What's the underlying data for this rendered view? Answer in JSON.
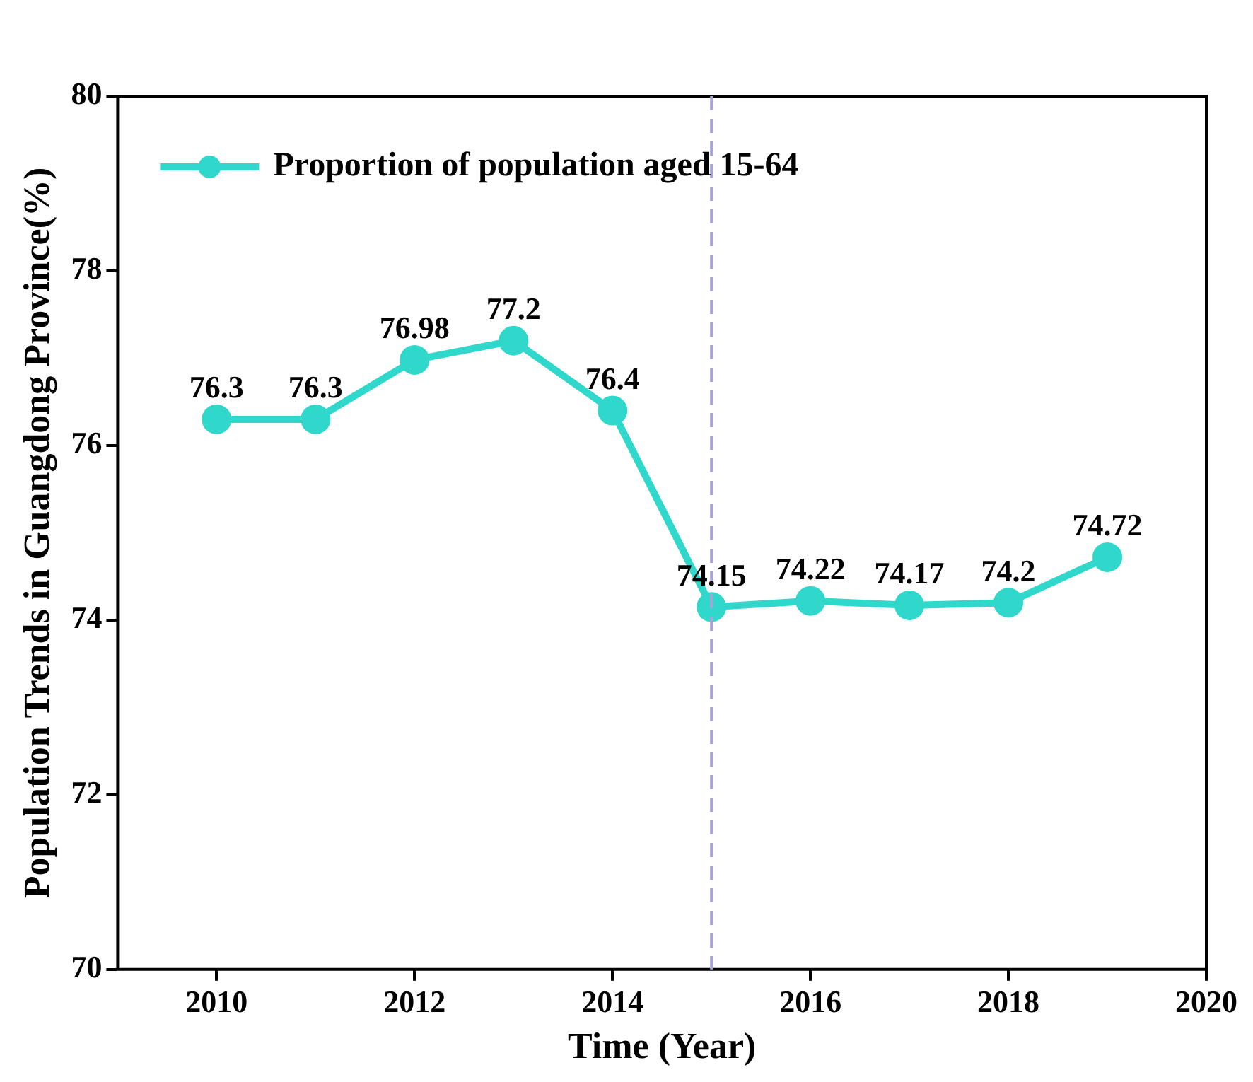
{
  "chart_data": {
    "type": "line",
    "xlabel": "Time (Year)",
    "ylabel": "Population Trends in Guangdong Province(%)",
    "x": [
      2010,
      2011,
      2012,
      2013,
      2014,
      2015,
      2016,
      2017,
      2018,
      2019
    ],
    "series": [
      {
        "name": "Proportion of population aged 15-64",
        "color": "#2fd8cb",
        "values": [
          76.3,
          76.3,
          76.98,
          77.2,
          76.4,
          74.15,
          74.22,
          74.17,
          74.2,
          74.72
        ]
      }
    ],
    "xlim": [
      2009,
      2020
    ],
    "xticks": [
      2010,
      2012,
      2014,
      2016,
      2018,
      2020
    ],
    "ylim": [
      70,
      80
    ],
    "yticks": [
      70,
      72,
      74,
      76,
      78,
      80
    ],
    "ref_lines": [
      {
        "axis": "x",
        "value": 2015,
        "color": "#a9a4d6",
        "line_style": "dashed"
      }
    ],
    "data_labels": true,
    "grid": false,
    "legend": "top left",
    "marker": "circle",
    "line_style": "solid"
  }
}
